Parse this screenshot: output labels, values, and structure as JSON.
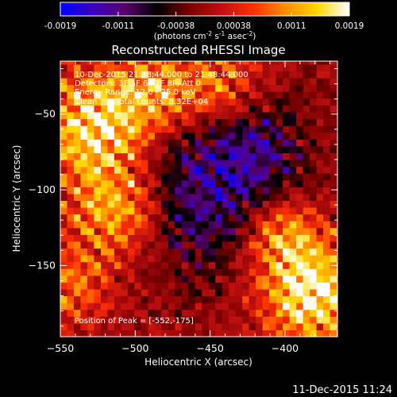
{
  "colorbar": {
    "ticks": [
      "-0.0019",
      "-0.0011",
      "-0.00038",
      "0.00038",
      "0.0011",
      "0.0019"
    ],
    "unit_label": "(photons cm",
    "unit_sup1": "-2",
    "unit_mid": " s",
    "unit_sup2": "-1",
    "unit_end": " asec",
    "unit_sup3": "-2",
    "unit_close": ")",
    "colors": [
      "#0000ff",
      "#3a00c0",
      "#5a0070",
      "#000000",
      "#7a0000",
      "#c01010",
      "#ff3000",
      "#ff8c00",
      "#ffd800",
      "#ffffff"
    ]
  },
  "annotations": {
    "time_range": "10-Dec-2015 21:38:44.000 to 21:48:44.000",
    "detectors": "Detectors: 3F 5F 6F 7F 8F, Att 0",
    "energy": "Energy Range: 12.0 - 25.0 keV",
    "clean": "Clean",
    "counts": "Total counts: 8.32E+04",
    "peak": "Position of Peak = [-552,-175]"
  },
  "footer_timestamp": "11-Dec-2015 11:24",
  "chart_data": {
    "type": "heatmap",
    "title": "Reconstructed RHESSI Image",
    "xlabel": "Heliocentric X (arcsec)",
    "ylabel": "Heliocentric Y (arcsec)",
    "xlim": [
      -550,
      -365
    ],
    "ylim": [
      -197,
      -15
    ],
    "xticks": [
      -550,
      -500,
      -450,
      -400
    ],
    "yticks": [
      -150,
      -100,
      -50
    ],
    "zlim": [
      -0.0019,
      0.0019
    ],
    "peak": [
      -552,
      -175
    ],
    "features": [
      {
        "x": -530,
        "y": -60,
        "sigma": 25,
        "amp": 0.0016
      },
      {
        "x": -515,
        "y": -115,
        "sigma": 22,
        "amp": 0.0013
      },
      {
        "x": -490,
        "y": -35,
        "sigma": 20,
        "amp": 0.0011
      },
      {
        "x": -445,
        "y": -35,
        "sigma": 18,
        "amp": 0.0009
      },
      {
        "x": -385,
        "y": -170,
        "sigma": 24,
        "amp": 0.0018
      },
      {
        "x": -405,
        "y": -130,
        "sigma": 18,
        "amp": 0.0011
      },
      {
        "x": -545,
        "y": -165,
        "sigma": 18,
        "amp": 0.0008
      },
      {
        "x": -455,
        "y": -105,
        "sigma": 35,
        "amp": -0.0011
      },
      {
        "x": -420,
        "y": -75,
        "sigma": 22,
        "amp": -0.0007
      }
    ]
  }
}
